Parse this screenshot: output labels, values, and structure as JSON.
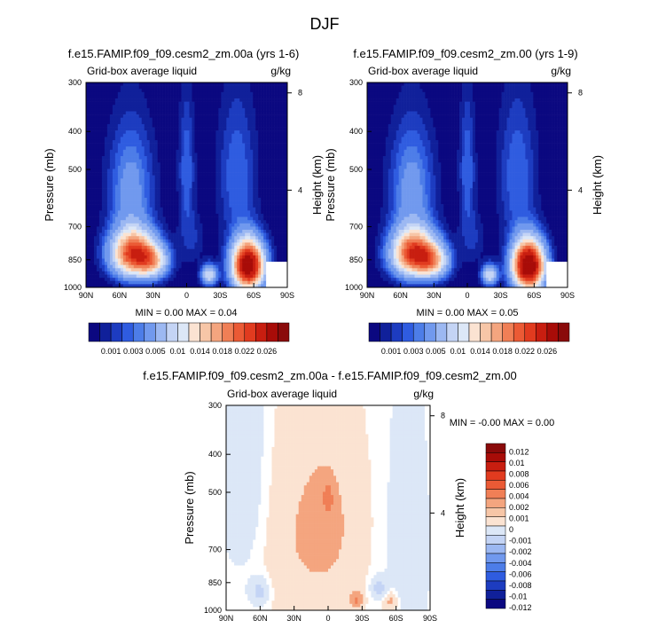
{
  "title": "DJF",
  "tick_labels": {
    "pressure": [
      "300",
      "400",
      "500",
      "700",
      "850",
      "1000"
    ],
    "latitude": [
      "90N",
      "60N",
      "30N",
      "0",
      "30S",
      "60S",
      "90S"
    ],
    "height": [
      "8",
      "4"
    ]
  },
  "colors": {
    "neg": [
      "#0b0880",
      "#10209a",
      "#1d3cc0",
      "#2f5ce0",
      "#4d7de8",
      "#7199ee",
      "#9cb8f2",
      "#c4d4f5",
      "#dce7f7"
    ],
    "pos": [
      "#fbe3d2",
      "#f7c6a7",
      "#f4a57f",
      "#f07f56",
      "#eb5a35",
      "#e13b1f",
      "#c81e10",
      "#a80c08",
      "#8a0a0a"
    ]
  },
  "chart_data": [
    {
      "type": "heatmap",
      "title": "f.e15.FAMIP.f09_f09.cesm2_zm.00a (yrs 1-6)",
      "left_label": "Grid-box average liquid",
      "right_label": "g/kg",
      "ylabel": "Pressure (mb)",
      "y2label": "Height (km)",
      "stats": "MIN =   0.00  MAX =  0.04",
      "colorbar_labels": [
        "0.001",
        "0.003",
        "0.005",
        "0.01",
        "0.014",
        "0.018",
        "0.022",
        "0.026"
      ],
      "features": [
        {
          "lat": 48,
          "p": 820,
          "amp": 0.024,
          "slat": 14,
          "sp": 80
        },
        {
          "lat": 30,
          "p": 860,
          "amp": 0.012,
          "slat": 10,
          "sp": 60
        },
        {
          "lat": -55,
          "p": 880,
          "amp": 0.034,
          "slat": 10,
          "sp": 90
        },
        {
          "lat": -20,
          "p": 930,
          "amp": 0.012,
          "slat": 5,
          "sp": 40
        },
        {
          "lat": 50,
          "p": 560,
          "amp": 0.006,
          "slat": 14,
          "sp": 140
        },
        {
          "lat": -45,
          "p": 520,
          "amp": 0.004,
          "slat": 12,
          "sp": 160
        },
        {
          "lat": 0,
          "p": 500,
          "amp": 0.004,
          "slat": 5,
          "sp": 140
        },
        {
          "lat": -5,
          "p": 750,
          "amp": 0.002,
          "slat": 8,
          "sp": 80
        }
      ]
    },
    {
      "type": "heatmap",
      "title": "f.e15.FAMIP.f09_f09.cesm2_zm.00 (yrs 1-9)",
      "left_label": "Grid-box average liquid",
      "right_label": "g/kg",
      "ylabel": "Pressure (mb)",
      "y2label": "Height (km)",
      "stats": "MIN =   0.00  MAX =  0.05",
      "colorbar_labels": [
        "0.001",
        "0.003",
        "0.005",
        "0.01",
        "0.014",
        "0.018",
        "0.022",
        "0.026"
      ],
      "features": [
        {
          "lat": 48,
          "p": 820,
          "amp": 0.025,
          "slat": 14,
          "sp": 80
        },
        {
          "lat": 30,
          "p": 860,
          "amp": 0.012,
          "slat": 10,
          "sp": 60
        },
        {
          "lat": -55,
          "p": 880,
          "amp": 0.036,
          "slat": 10,
          "sp": 90
        },
        {
          "lat": -20,
          "p": 930,
          "amp": 0.012,
          "slat": 5,
          "sp": 40
        },
        {
          "lat": 50,
          "p": 560,
          "amp": 0.006,
          "slat": 14,
          "sp": 140
        },
        {
          "lat": -45,
          "p": 520,
          "amp": 0.004,
          "slat": 12,
          "sp": 160
        },
        {
          "lat": 0,
          "p": 500,
          "amp": 0.004,
          "slat": 5,
          "sp": 140
        },
        {
          "lat": -5,
          "p": 750,
          "amp": 0.002,
          "slat": 8,
          "sp": 80
        }
      ]
    },
    {
      "type": "heatmap",
      "title": "f.e15.FAMIP.f09_f09.cesm2_zm.00a - f.e15.FAMIP.f09_f09.cesm2_zm.00",
      "left_label": "Grid-box average liquid",
      "right_label": "g/kg",
      "ylabel": "Pressure (mb)",
      "y2label": "Height (km)",
      "stats": "MIN =  -0.00  MAX =   0.00",
      "colorbar_labels": [
        "0.012",
        "0.01",
        "0.008",
        "0.006",
        "0.004",
        "0.002",
        "0.001",
        "0",
        "-0.001",
        "-0.002",
        "-0.004",
        "-0.006",
        "-0.008",
        "-0.01",
        "-0.012"
      ],
      "features": [
        {
          "lat": 30,
          "p": 650,
          "amp": 0.0008,
          "slat": 25,
          "sp": 300
        },
        {
          "lat": -5,
          "p": 600,
          "amp": 0.0009,
          "slat": 20,
          "sp": 250
        },
        {
          "lat": 0,
          "p": 520,
          "amp": 0.002,
          "slat": 3,
          "sp": 30
        },
        {
          "lat": -25,
          "p": 940,
          "amp": 0.002,
          "slat": 4,
          "sp": 30
        },
        {
          "lat": 72,
          "p": 450,
          "amp": -0.0008,
          "slat": 15,
          "sp": 250
        },
        {
          "lat": -70,
          "p": 700,
          "amp": -0.0008,
          "slat": 12,
          "sp": 350
        },
        {
          "lat": 60,
          "p": 900,
          "amp": -0.0015,
          "slat": 6,
          "sp": 50
        },
        {
          "lat": -45,
          "p": 880,
          "amp": -0.0015,
          "slat": 5,
          "sp": 40
        },
        {
          "lat": -55,
          "p": 950,
          "amp": 0.0015,
          "slat": 5,
          "sp": 40
        }
      ]
    }
  ]
}
